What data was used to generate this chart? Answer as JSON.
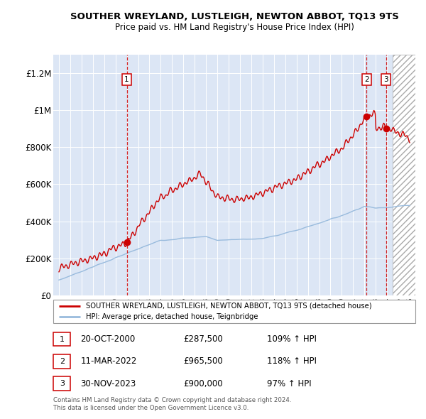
{
  "title": "SOUTHER WREYLAND, LUSTLEIGH, NEWTON ABBOT, TQ13 9TS",
  "subtitle": "Price paid vs. HM Land Registry's House Price Index (HPI)",
  "legend_label_red": "SOUTHER WREYLAND, LUSTLEIGH, NEWTON ABBOT, TQ13 9TS (detached house)",
  "legend_label_blue": "HPI: Average price, detached house, Teignbridge",
  "footer_line1": "Contains HM Land Registry data © Crown copyright and database right 2024.",
  "footer_line2": "This data is licensed under the Open Government Licence v3.0.",
  "ylim": [
    0,
    1300000
  ],
  "yticks": [
    0,
    200000,
    400000,
    600000,
    800000,
    1000000,
    1200000
  ],
  "ytick_labels": [
    "£0",
    "£200K",
    "£400K",
    "£600K",
    "£800K",
    "£1M",
    "£1.2M"
  ],
  "xlim_start": 1994.5,
  "xlim_end": 2026.5,
  "hatch_start": 2024.5,
  "sale_events": [
    {
      "index": 1,
      "year": 2001.0,
      "price": 287500
    },
    {
      "index": 2,
      "year": 2022.2,
      "price": 965500
    },
    {
      "index": 3,
      "year": 2023.9,
      "price": 900000
    }
  ],
  "table_rows": [
    {
      "num": "1",
      "date": "20-OCT-2000",
      "price": "£287,500",
      "pct": "109% ↑ HPI"
    },
    {
      "num": "2",
      "date": "11-MAR-2022",
      "price": "£965,500",
      "pct": "118% ↑ HPI"
    },
    {
      "num": "3",
      "date": "30-NOV-2023",
      "price": "£900,000",
      "pct": "97% ↑ HPI"
    }
  ],
  "bg_color": "#dce6f5",
  "grid_color": "#ffffff",
  "red_color": "#cc0000",
  "blue_color": "#99bbdd"
}
